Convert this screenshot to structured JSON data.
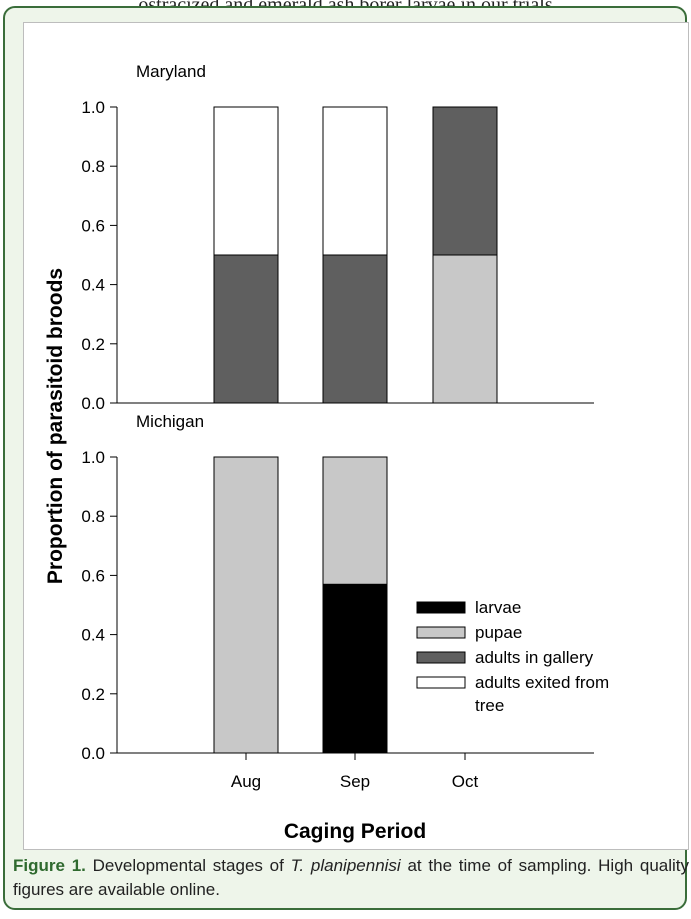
{
  "top_fragment": "ostracized and emerald ash borer larvae in our trials",
  "caption": {
    "label": "Figure 1.",
    "pre": " Developmental stages of ",
    "species": "T. planipennisi",
    "post": " at the time of sampling. High quality figures are available online."
  },
  "chart_data": {
    "type": "bar",
    "stacked": true,
    "ylabel": "Proportion of parasitoid broods",
    "xlabel": "Caging Period",
    "categories": [
      "Aug",
      "Sep",
      "Oct"
    ],
    "ylim": [
      0,
      1
    ],
    "yticks": [
      "0.0",
      "0.2",
      "0.4",
      "0.6",
      "0.8",
      "1.0"
    ],
    "legend": {
      "placement": "lower-right of Michigan panel",
      "entries": [
        {
          "name": "larvae",
          "color": "#000000"
        },
        {
          "name": "pupae",
          "color": "#c8c8c8"
        },
        {
          "name": "adults in gallery",
          "color": "#5f5f5f"
        },
        {
          "name": "adults exited from tree",
          "color": "#ffffff"
        }
      ]
    },
    "panels": [
      {
        "title": "Maryland",
        "series": [
          {
            "name": "larvae",
            "values": [
              0,
              0,
              0
            ]
          },
          {
            "name": "pupae",
            "values": [
              0,
              0,
              0.5
            ]
          },
          {
            "name": "adults in gallery",
            "values": [
              0.5,
              0.5,
              0.5
            ]
          },
          {
            "name": "adults exited from tree",
            "values": [
              0.5,
              0.5,
              0
            ]
          }
        ]
      },
      {
        "title": "Michigan",
        "series": [
          {
            "name": "larvae",
            "values": [
              0,
              0.57,
              0
            ]
          },
          {
            "name": "pupae",
            "values": [
              1.0,
              0.43,
              0
            ]
          },
          {
            "name": "adults in gallery",
            "values": [
              0,
              0,
              0
            ]
          },
          {
            "name": "adults exited from tree",
            "values": [
              0,
              0,
              0
            ]
          }
        ]
      }
    ]
  }
}
